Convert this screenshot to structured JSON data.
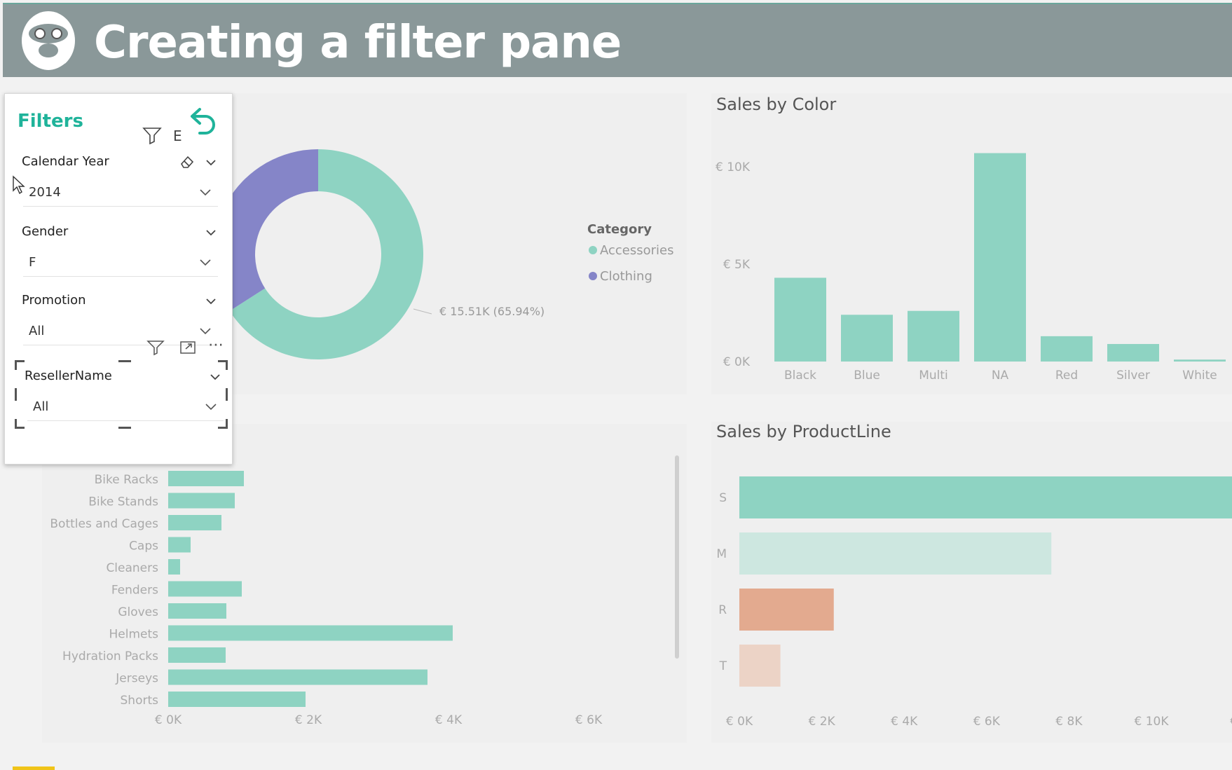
{
  "header": {
    "title": "Creating a filter pane"
  },
  "filters": {
    "title": "Filters",
    "cards": [
      {
        "label": "Calendar Year",
        "value": "2014"
      },
      {
        "label": "Gender",
        "value": "F"
      },
      {
        "label": "Promotion",
        "value": "All"
      },
      {
        "label": "ResellerName",
        "value": "All"
      }
    ],
    "partial_text": "E"
  },
  "donut": {
    "legend_title": "Category",
    "legend": [
      "Accessories",
      "Clothing"
    ],
    "data_label": "€ 15.51K (65.94%)"
  },
  "chart_data": [
    {
      "type": "pie",
      "categories": [
        "Accessories",
        "Clothing"
      ],
      "values": [
        65.94,
        34.06
      ],
      "legend_title": "Category"
    },
    {
      "type": "bar",
      "title": "Sales by Color",
      "categories": [
        "Black",
        "Blue",
        "Multi",
        "NA",
        "Red",
        "Silver",
        "White"
      ],
      "values": [
        4300,
        2400,
        2600,
        10700,
        1300,
        900,
        100
      ],
      "yticks": [
        "€ 10K",
        "€ 5K",
        "€ 0K"
      ],
      "ylim": [
        0,
        10000
      ]
    },
    {
      "type": "bar",
      "orientation": "horizontal",
      "categories": [
        "Bike Racks",
        "Bike Stands",
        "Bottles and Cages",
        "Caps",
        "Cleaners",
        "Fenders",
        "Gloves",
        "Helmets",
        "Hydration Packs",
        "Jerseys",
        "Shorts"
      ],
      "values": [
        1080,
        950,
        760,
        320,
        170,
        1050,
        830,
        4060,
        820,
        3700,
        1960
      ],
      "xticks": [
        "€ 0K",
        "€ 2K",
        "€ 4K",
        "€ 6K"
      ],
      "xlim": [
        0,
        6000
      ]
    },
    {
      "type": "bar",
      "orientation": "horizontal",
      "title": "Sales by ProductLine",
      "categories": [
        "S",
        "M",
        "R",
        "T"
      ],
      "values": [
        12300,
        7600,
        2300,
        1000
      ],
      "colors": [
        "#8ed3c2",
        "#cde7e0",
        "#e3aa8f",
        "#ecd3c6"
      ],
      "xticks": [
        "€ 0K",
        "€ 2K",
        "€ 4K",
        "€ 6K",
        "€ 8K",
        "€ 10K",
        "€"
      ],
      "xlim": [
        0,
        12000
      ]
    }
  ],
  "colors": {
    "teal": "#8ed3c2",
    "purple": "#8585c8",
    "accent": "#1fb39a"
  }
}
